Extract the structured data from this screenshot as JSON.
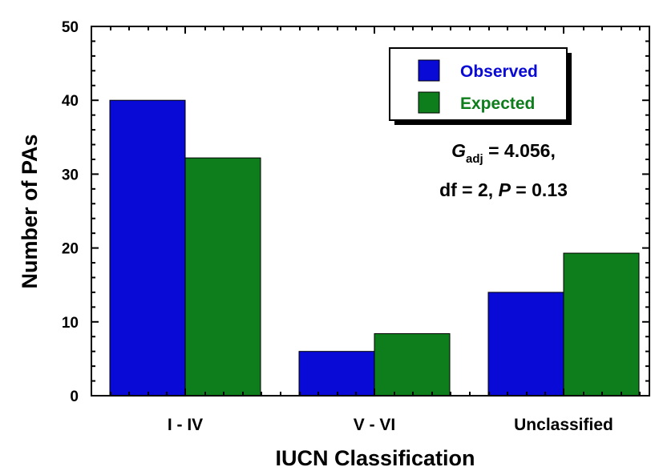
{
  "chart_data": {
    "type": "bar",
    "categories": [
      "I - IV",
      "V - VI",
      "Unclassified"
    ],
    "series": [
      {
        "name": "Observed",
        "values": [
          40,
          6,
          14
        ],
        "color": "#0a0ad6"
      },
      {
        "name": "Expected",
        "values": [
          32.2,
          8.4,
          19.3
        ],
        "color": "#0e7d1c"
      }
    ],
    "xlabel": "IUCN Classification",
    "ylabel": "Number of PAs",
    "ylim": [
      0,
      50
    ],
    "yticks": [
      0,
      10,
      20,
      30,
      40,
      50
    ],
    "grid": false,
    "legend_position": "top-right",
    "annotation": {
      "line1_symbol": "G",
      "line1_subscript": "adj",
      "line1_value": " = 4.056,",
      "line2_prefix": "df = 2, ",
      "line2_symbol": "P",
      "line2_value": " = 0.13"
    }
  }
}
